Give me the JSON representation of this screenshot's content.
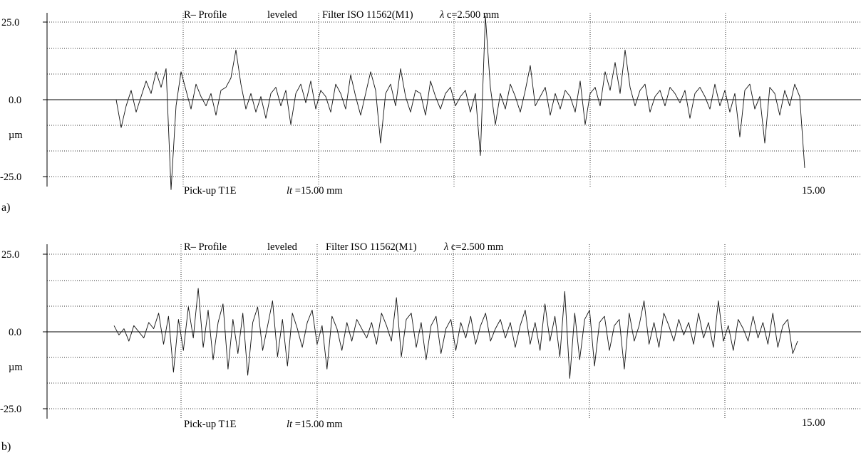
{
  "chart_data": [
    {
      "type": "line",
      "panel_label": "a)",
      "title_parts": {
        "profile": "R– Profile",
        "mode": "leveled",
        "filter": "Filter ISO 11562(M1)",
        "lambda_symbol": "λ",
        "cutoff": "c=2.500 mm"
      },
      "yticks": [
        "25.0",
        "0.0",
        "µm",
        "-25.0"
      ],
      "ylim": [
        -25,
        25
      ],
      "footer_parts": {
        "pickup": "Pick-up T1E",
        "lt_symbol": "lt",
        "lt_value": "=15.00 mm"
      },
      "x_end_label": "15.00",
      "xlim": [
        0,
        15
      ],
      "series": [
        {
          "x": [
            0.0,
            0.1,
            0.2,
            0.3,
            0.4,
            0.5,
            0.6,
            0.7,
            0.8,
            0.9,
            1.0,
            1.1,
            1.2,
            1.3,
            1.4,
            1.5,
            1.6,
            1.7,
            1.8,
            1.9,
            2.0,
            2.1,
            2.2,
            2.3,
            2.4,
            2.5,
            2.6,
            2.7,
            2.8,
            2.9,
            3.0,
            3.1,
            3.2,
            3.3,
            3.4,
            3.5,
            3.6,
            3.7,
            3.8,
            3.9,
            4.0,
            4.1,
            4.2,
            4.3,
            4.4,
            4.5,
            4.6,
            4.7,
            4.8,
            4.9,
            5.0,
            5.1,
            5.2,
            5.3,
            5.4,
            5.5,
            5.6,
            5.7,
            5.8,
            5.9,
            6.0,
            6.1,
            6.2,
            6.3,
            6.4,
            6.5,
            6.6,
            6.7,
            6.8,
            6.9,
            7.0,
            7.1,
            7.2,
            7.3,
            7.4,
            7.5,
            7.6,
            7.7,
            7.8,
            7.9,
            8.0,
            8.1,
            8.2,
            8.3,
            8.4,
            8.5,
            8.6,
            8.7,
            8.8,
            8.9,
            9.0,
            9.1,
            9.2,
            9.3,
            9.4,
            9.5,
            9.6,
            9.7,
            9.8,
            9.9,
            10.0,
            10.1,
            10.2,
            10.3,
            10.4,
            10.5,
            10.6,
            10.7,
            10.8,
            10.9,
            11.0,
            11.1,
            11.2,
            11.3,
            11.4,
            11.5,
            11.6,
            11.7,
            11.8,
            11.9,
            12.0,
            12.1,
            12.2,
            12.3,
            12.4,
            12.5,
            12.6,
            12.7,
            12.8,
            12.9,
            13.0,
            13.1,
            13.2,
            13.3,
            13.4,
            13.5,
            13.6,
            13.7,
            13.8
          ],
          "y": [
            0,
            -9,
            -2,
            3,
            -4,
            1,
            6,
            2,
            9,
            4,
            10,
            -29,
            -2,
            9,
            3,
            -3,
            5,
            1,
            -2,
            2,
            -5,
            3,
            4,
            7,
            16,
            5,
            -3,
            2,
            -4,
            1,
            -6,
            2,
            4,
            -2,
            3,
            -8,
            2,
            5,
            -1,
            6,
            -3,
            3,
            1,
            -4,
            5,
            2,
            -3,
            8,
            1,
            -5,
            2,
            9,
            3,
            -14,
            2,
            5,
            -2,
            10,
            1,
            -4,
            3,
            2,
            -5,
            6,
            1,
            -3,
            2,
            4,
            -2,
            1,
            3,
            -4,
            2,
            -18,
            27,
            4,
            -8,
            2,
            -3,
            5,
            1,
            -4,
            3,
            11,
            -2,
            1,
            4,
            -5,
            2,
            -3,
            3,
            1,
            -4,
            6,
            -8,
            2,
            4,
            -2,
            9,
            3,
            12,
            2,
            16,
            4,
            -2,
            3,
            5,
            -4,
            1,
            3,
            -2,
            4,
            2,
            -1,
            3,
            -6,
            2,
            4,
            1,
            -3,
            5,
            -2,
            3,
            -4,
            2,
            -12,
            3,
            5,
            -3,
            1,
            -14,
            4,
            2,
            -5,
            3,
            -2,
            5,
            1,
            -22
          ]
        }
      ]
    },
    {
      "type": "line",
      "panel_label": "b)",
      "title_parts": {
        "profile": "R– Profile",
        "mode": "leveled",
        "filter": "Filter ISO 11562(M1)",
        "lambda_symbol": "λ",
        "cutoff": "c=2.500 mm"
      },
      "yticks": [
        "25.0",
        "0.0",
        "µm",
        "-25.0"
      ],
      "ylim": [
        -25,
        25
      ],
      "footer_parts": {
        "pickup": "Pick-up T1E",
        "lt_symbol": "lt",
        "lt_value": "=15.00 mm"
      },
      "x_end_label": "15.00",
      "xlim": [
        0,
        15
      ],
      "series": [
        {
          "x": [
            0.0,
            0.1,
            0.2,
            0.3,
            0.4,
            0.5,
            0.6,
            0.7,
            0.8,
            0.9,
            1.0,
            1.1,
            1.2,
            1.3,
            1.4,
            1.5,
            1.6,
            1.7,
            1.8,
            1.9,
            2.0,
            2.1,
            2.2,
            2.3,
            2.4,
            2.5,
            2.6,
            2.7,
            2.8,
            2.9,
            3.0,
            3.1,
            3.2,
            3.3,
            3.4,
            3.5,
            3.6,
            3.7,
            3.8,
            3.9,
            4.0,
            4.1,
            4.2,
            4.3,
            4.4,
            4.5,
            4.6,
            4.7,
            4.8,
            4.9,
            5.0,
            5.1,
            5.2,
            5.3,
            5.4,
            5.5,
            5.6,
            5.7,
            5.8,
            5.9,
            6.0,
            6.1,
            6.2,
            6.3,
            6.4,
            6.5,
            6.6,
            6.7,
            6.8,
            6.9,
            7.0,
            7.1,
            7.2,
            7.3,
            7.4,
            7.5,
            7.6,
            7.7,
            7.8,
            7.9,
            8.0,
            8.1,
            8.2,
            8.3,
            8.4,
            8.5,
            8.6,
            8.7,
            8.8,
            8.9,
            9.0,
            9.1,
            9.2,
            9.3,
            9.4,
            9.5,
            9.6,
            9.7,
            9.8,
            9.9,
            10.0,
            10.1,
            10.2,
            10.3,
            10.4,
            10.5,
            10.6,
            10.7,
            10.8,
            10.9,
            11.0,
            11.1,
            11.2,
            11.3,
            11.4,
            11.5,
            11.6,
            11.7,
            11.8,
            11.9,
            12.0,
            12.1,
            12.2,
            12.3,
            12.4,
            12.5,
            12.6,
            12.7,
            12.8,
            12.9,
            13.0,
            13.1,
            13.2,
            13.3,
            13.4,
            13.5,
            13.6,
            13.7,
            13.8
          ],
          "y": [
            2,
            -1,
            1,
            -3,
            2,
            0,
            -2,
            3,
            1,
            6,
            -4,
            5,
            -13,
            4,
            -6,
            8,
            -2,
            14,
            -5,
            7,
            -9,
            3,
            9,
            -12,
            4,
            -7,
            6,
            -14,
            3,
            8,
            -6,
            2,
            10,
            -8,
            4,
            -11,
            6,
            1,
            -5,
            3,
            7,
            -4,
            2,
            -12,
            5,
            1,
            -6,
            3,
            -3,
            4,
            1,
            -2,
            3,
            -4,
            6,
            2,
            -3,
            11,
            -8,
            4,
            6,
            -5,
            3,
            -9,
            2,
            5,
            -7,
            1,
            4,
            -6,
            3,
            -2,
            5,
            -4,
            2,
            6,
            -3,
            1,
            4,
            -2,
            3,
            -5,
            2,
            7,
            -4,
            3,
            -6,
            9,
            -3,
            5,
            -8,
            13,
            -15,
            6,
            -9,
            4,
            7,
            -11,
            3,
            5,
            -6,
            2,
            4,
            -12,
            6,
            -3,
            2,
            10,
            -4,
            3,
            -5,
            6,
            2,
            -3,
            4,
            -1,
            3,
            -4,
            6,
            -2,
            3,
            -5,
            10,
            -3,
            2,
            -6,
            4,
            1,
            -3,
            5,
            -2,
            3,
            -4,
            6,
            -5,
            2,
            4,
            -7,
            -3
          ]
        }
      ]
    }
  ]
}
